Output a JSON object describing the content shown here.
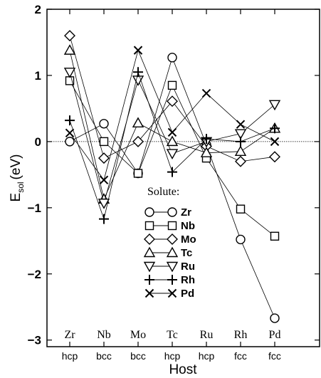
{
  "chart_data": {
    "type": "line",
    "xlabel": "Host",
    "ylabel": "E",
    "ylabel_subscript": "sol",
    "ylabel_unit": "(eV)",
    "ylim": [
      -3.1,
      2.0
    ],
    "yticks": [
      2,
      1,
      0,
      -1,
      -2,
      -3
    ],
    "ytick_labels": [
      "2",
      "1",
      "0",
      "−1",
      "−2",
      "−3"
    ],
    "hosts": [
      "Zr",
      "Nb",
      "Mo",
      "Tc",
      "Ru",
      "Rh",
      "Pd"
    ],
    "lattices": [
      "hcp",
      "bcc",
      "bcc",
      "hcp",
      "hcp",
      "fcc",
      "fcc"
    ],
    "zero_line": true,
    "legend_title": "Solute:",
    "legend_position": "center",
    "series": [
      {
        "name": "Zr",
        "marker": "circle",
        "values": [
          0.0,
          0.27,
          -0.48,
          1.27,
          -0.05,
          -1.48,
          -2.67
        ]
      },
      {
        "name": "Nb",
        "marker": "square",
        "values": [
          0.92,
          0.0,
          -0.48,
          0.85,
          -0.25,
          -1.02,
          -1.43
        ]
      },
      {
        "name": "Mo",
        "marker": "diamond",
        "values": [
          1.6,
          -0.25,
          0.0,
          0.61,
          -0.07,
          -0.3,
          -0.23
        ]
      },
      {
        "name": "Tc",
        "marker": "triangle",
        "values": [
          1.38,
          -0.87,
          0.28,
          0.0,
          -0.17,
          -0.15,
          0.2
        ]
      },
      {
        "name": "Ru",
        "marker": "tri-down",
        "values": [
          1.05,
          -0.93,
          0.93,
          -0.18,
          0.0,
          0.12,
          0.56
        ]
      },
      {
        "name": "Rh",
        "marker": "plus",
        "values": [
          0.32,
          -1.17,
          1.05,
          -0.46,
          0.04,
          0.0,
          0.2
        ]
      },
      {
        "name": "Pd",
        "marker": "cross",
        "values": [
          0.13,
          -0.58,
          1.38,
          0.14,
          0.73,
          0.26,
          0.0
        ]
      }
    ]
  }
}
